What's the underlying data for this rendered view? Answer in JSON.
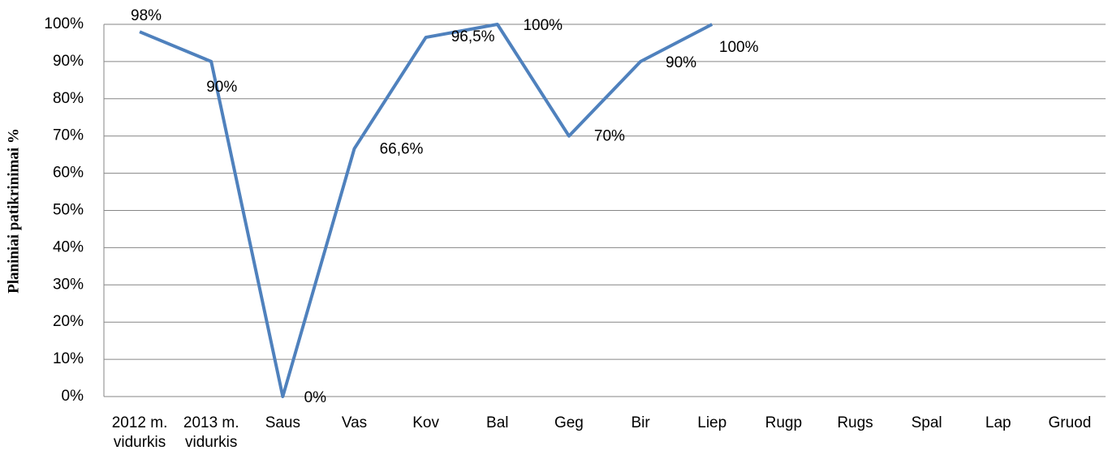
{
  "chart_data": {
    "type": "line",
    "y_label": "Planiniai patikrinimai %",
    "categories": [
      "2012 m. vidurkis",
      "2013 m. vidurkis",
      "Saus",
      "Vas",
      "Kov",
      "Bal",
      "Geg",
      "Bir",
      "Liep",
      "Rugp",
      "Rugs",
      "Spal",
      "Lap",
      "Gruod"
    ],
    "series": [
      {
        "name": "Planiniai patikrinimai",
        "color": "#4f81bd",
        "values": [
          98,
          90,
          0,
          66.6,
          96.5,
          100,
          70,
          90,
          100,
          null,
          null,
          null,
          null,
          null
        ],
        "value_labels": [
          "98%",
          "90%",
          "0%",
          "66,6%",
          "96,5%",
          "100%",
          "70%",
          "90%",
          "100%",
          null,
          null,
          null,
          null,
          null
        ]
      }
    ],
    "ylim": [
      0,
      100
    ],
    "yticks": [
      {
        "value": 0,
        "label": "0%"
      },
      {
        "value": 10,
        "label": "10%"
      },
      {
        "value": 20,
        "label": "20%"
      },
      {
        "value": 30,
        "label": "30%"
      },
      {
        "value": 40,
        "label": "40%"
      },
      {
        "value": 50,
        "label": "50%"
      },
      {
        "value": 60,
        "label": "60%"
      },
      {
        "value": 70,
        "label": "70%"
      },
      {
        "value": 80,
        "label": "80%"
      },
      {
        "value": 90,
        "label": "90%"
      },
      {
        "value": 100,
        "label": "100%"
      }
    ],
    "grid": true
  }
}
